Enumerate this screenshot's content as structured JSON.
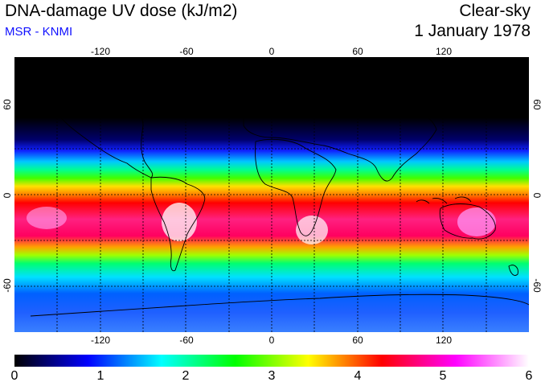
{
  "header": {
    "title": "DNA-damage UV dose (kJ/m2)",
    "subtitle": "MSR - KNMI",
    "condition": "Clear-sky",
    "date": "1 January 1978"
  },
  "map": {
    "longitude_labels": [
      "-120",
      "-60",
      "0",
      "60",
      "120"
    ],
    "latitude_labels": [
      "60",
      "0",
      "-60"
    ]
  },
  "colorbar": {
    "min": 0,
    "max": 6,
    "tick_labels": [
      "0",
      "1",
      "2",
      "3",
      "4",
      "5",
      "6"
    ],
    "colors": [
      "#000000",
      "#0000ff",
      "#00ffff",
      "#00ff00",
      "#ffff00",
      "#ff0000",
      "#ff00ff",
      "#ffffff"
    ]
  }
}
